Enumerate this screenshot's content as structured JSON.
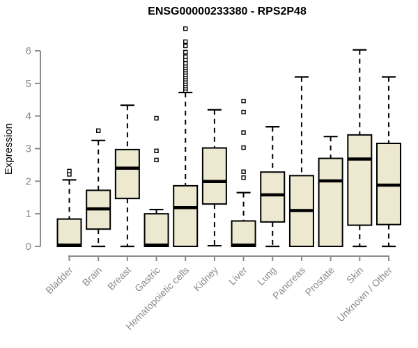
{
  "page": {
    "title": "ENSG00000233380 - RPS2P48"
  },
  "colors": {
    "box_fill": "#EDE8D0",
    "box_border": "#000000",
    "median": "#000000",
    "whisker": "#000000",
    "outlier_border": "#000000",
    "outlier_fill": "#FFFFFF",
    "axis": "#8A8A8A",
    "tick_label": "#8A8A8A",
    "title_color": "#000000",
    "background": "#FFFFFF"
  },
  "chart_data": {
    "type": "boxplot",
    "title": "ENSG00000233380 - RPS2P48",
    "xlabel": "",
    "ylabel": "Expression",
    "ylim": [
      0,
      6.8
    ],
    "yticks": [
      0,
      1,
      2,
      3,
      4,
      5,
      6
    ],
    "grid": false,
    "legend": null,
    "categories": [
      "Bladder",
      "Brain",
      "Breast",
      "Gastric",
      "Hematopoietic cells",
      "Kidney",
      "Liver",
      "Lung",
      "Pancreas",
      "Prostate",
      "Skin",
      "Unknown / Other"
    ],
    "boxes": [
      {
        "category": "Bladder",
        "whisker_low": 0,
        "q1": 0,
        "median": 0.04,
        "q3": 0.84,
        "whisker_high": 2.04,
        "outliers": [
          2.21,
          2.31
        ]
      },
      {
        "category": "Brain",
        "whisker_low": 0,
        "q1": 0.53,
        "median": 1.15,
        "q3": 1.72,
        "whisker_high": 3.25,
        "outliers": [
          3.55
        ]
      },
      {
        "category": "Breast",
        "whisker_low": 0,
        "q1": 1.47,
        "median": 2.4,
        "q3": 2.97,
        "whisker_high": 4.33,
        "outliers": []
      },
      {
        "category": "Gastric",
        "whisker_low": 0,
        "q1": 0,
        "median": 0.04,
        "q3": 1.0,
        "whisker_high": 1.13,
        "outliers": [
          2.65,
          2.93,
          3.93
        ]
      },
      {
        "category": "Hematopoietic cells",
        "whisker_low": 0,
        "q1": 0,
        "median": 1.19,
        "q3": 1.86,
        "whisker_high": 4.72,
        "outliers": [
          4.78,
          4.85,
          4.92,
          4.99,
          5.06,
          5.13,
          5.2,
          5.27,
          5.34,
          5.41,
          5.48,
          5.55,
          5.62,
          5.72,
          5.82,
          5.96,
          6.15,
          6.28,
          6.68
        ]
      },
      {
        "category": "Kidney",
        "whisker_low": 0.02,
        "q1": 1.3,
        "median": 1.99,
        "q3": 3.02,
        "whisker_high": 4.19,
        "outliers": []
      },
      {
        "category": "Liver",
        "whisker_low": 0,
        "q1": 0,
        "median": 0.04,
        "q3": 0.78,
        "whisker_high": 1.65,
        "outliers": [
          2.11,
          2.29,
          3.03,
          3.49,
          4.12,
          4.46
        ]
      },
      {
        "category": "Lung",
        "whisker_low": 0,
        "q1": 0.75,
        "median": 1.58,
        "q3": 2.28,
        "whisker_high": 3.67,
        "outliers": []
      },
      {
        "category": "Pancreas",
        "whisker_low": 0,
        "q1": 0,
        "median": 1.1,
        "q3": 2.17,
        "whisker_high": 5.2,
        "outliers": []
      },
      {
        "category": "Prostate",
        "whisker_low": 0,
        "q1": 0,
        "median": 2.01,
        "q3": 2.7,
        "whisker_high": 3.37,
        "outliers": []
      },
      {
        "category": "Skin",
        "whisker_low": 0,
        "q1": 0.65,
        "median": 2.68,
        "q3": 3.42,
        "whisker_high": 6.03,
        "outliers": []
      },
      {
        "category": "Unknown / Other",
        "whisker_low": 0,
        "q1": 0.67,
        "median": 1.88,
        "q3": 3.16,
        "whisker_high": 5.2,
        "outliers": []
      }
    ]
  }
}
